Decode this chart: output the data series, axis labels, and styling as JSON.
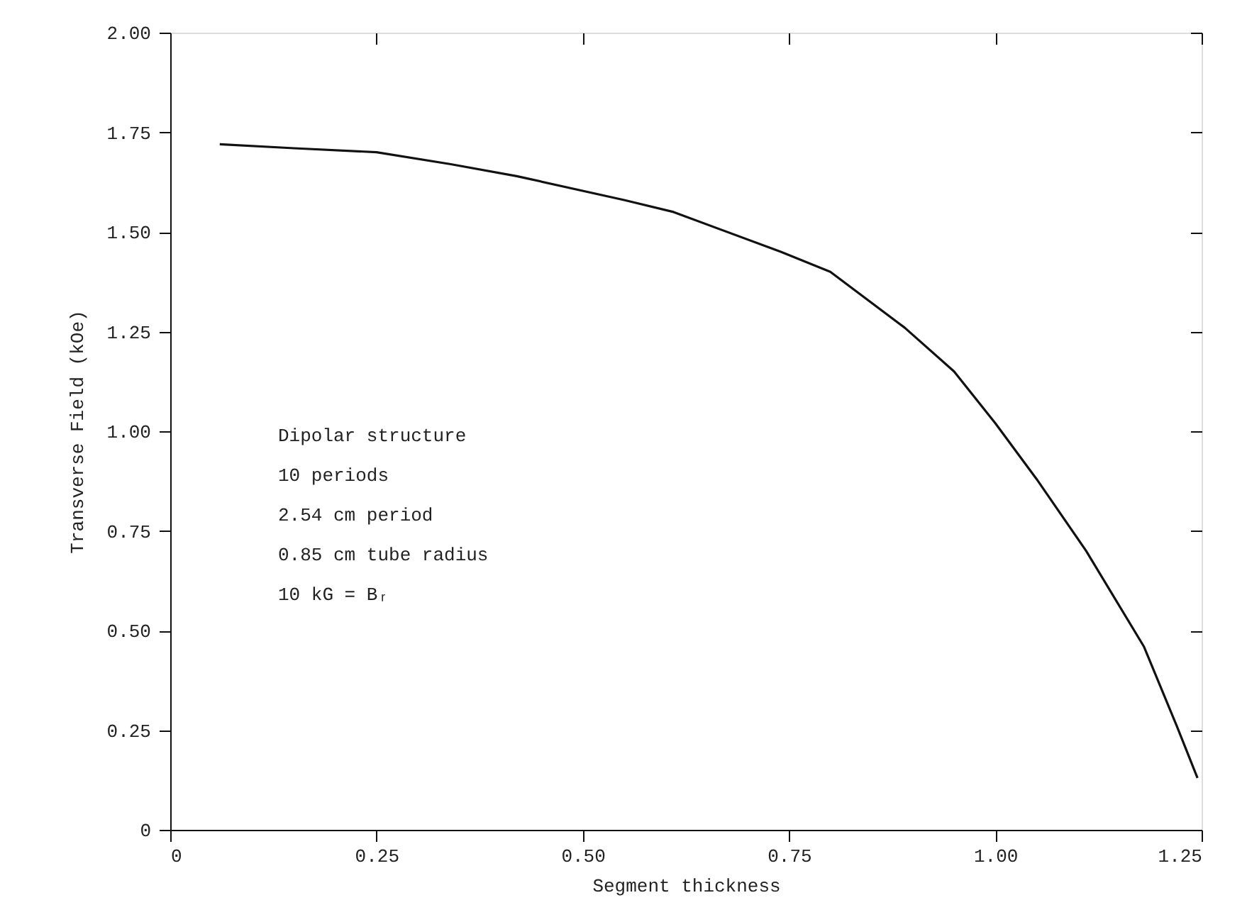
{
  "chart_data": {
    "type": "line",
    "xlabel": "Segment thickness",
    "ylabel": "Transverse Field (kOe)",
    "x": [
      0.06,
      0.15,
      0.25,
      0.34,
      0.42,
      0.55,
      0.61,
      0.74,
      0.8,
      0.89,
      0.95,
      1.0,
      1.05,
      1.11,
      1.18,
      1.22,
      1.245
    ],
    "series": [
      {
        "color": "#111111",
        "values": [
          1.72,
          1.71,
          1.7,
          1.67,
          1.64,
          1.58,
          1.55,
          1.45,
          1.4,
          1.26,
          1.15,
          1.02,
          0.88,
          0.7,
          0.46,
          0.26,
          0.13
        ]
      }
    ],
    "xlim": [
      0,
      1.25
    ],
    "xticks": [
      0,
      0.25,
      {
        "value": 0.5,
        "label": "0.50"
      },
      0.75,
      {
        "value": 1,
        "label": "1.00"
      },
      1.25
    ],
    "ylim": [
      0,
      2.0
    ],
    "yticks": [
      0,
      0.25,
      {
        "value": 0.5,
        "label": "0.50"
      },
      0.75,
      {
        "value": 1,
        "label": "1.00"
      },
      1.25,
      {
        "value": 1.5,
        "label": "1.50"
      },
      1.75,
      {
        "value": 2,
        "label": "2.00"
      }
    ],
    "grid": false,
    "legend": false,
    "marker": "none",
    "line_style": "solid",
    "annotations": [
      "Dipolar structure",
      "10 periods",
      "2.54 cm period",
      "0.85 cm tube radius",
      "10 kG = Bᵣ"
    ]
  }
}
